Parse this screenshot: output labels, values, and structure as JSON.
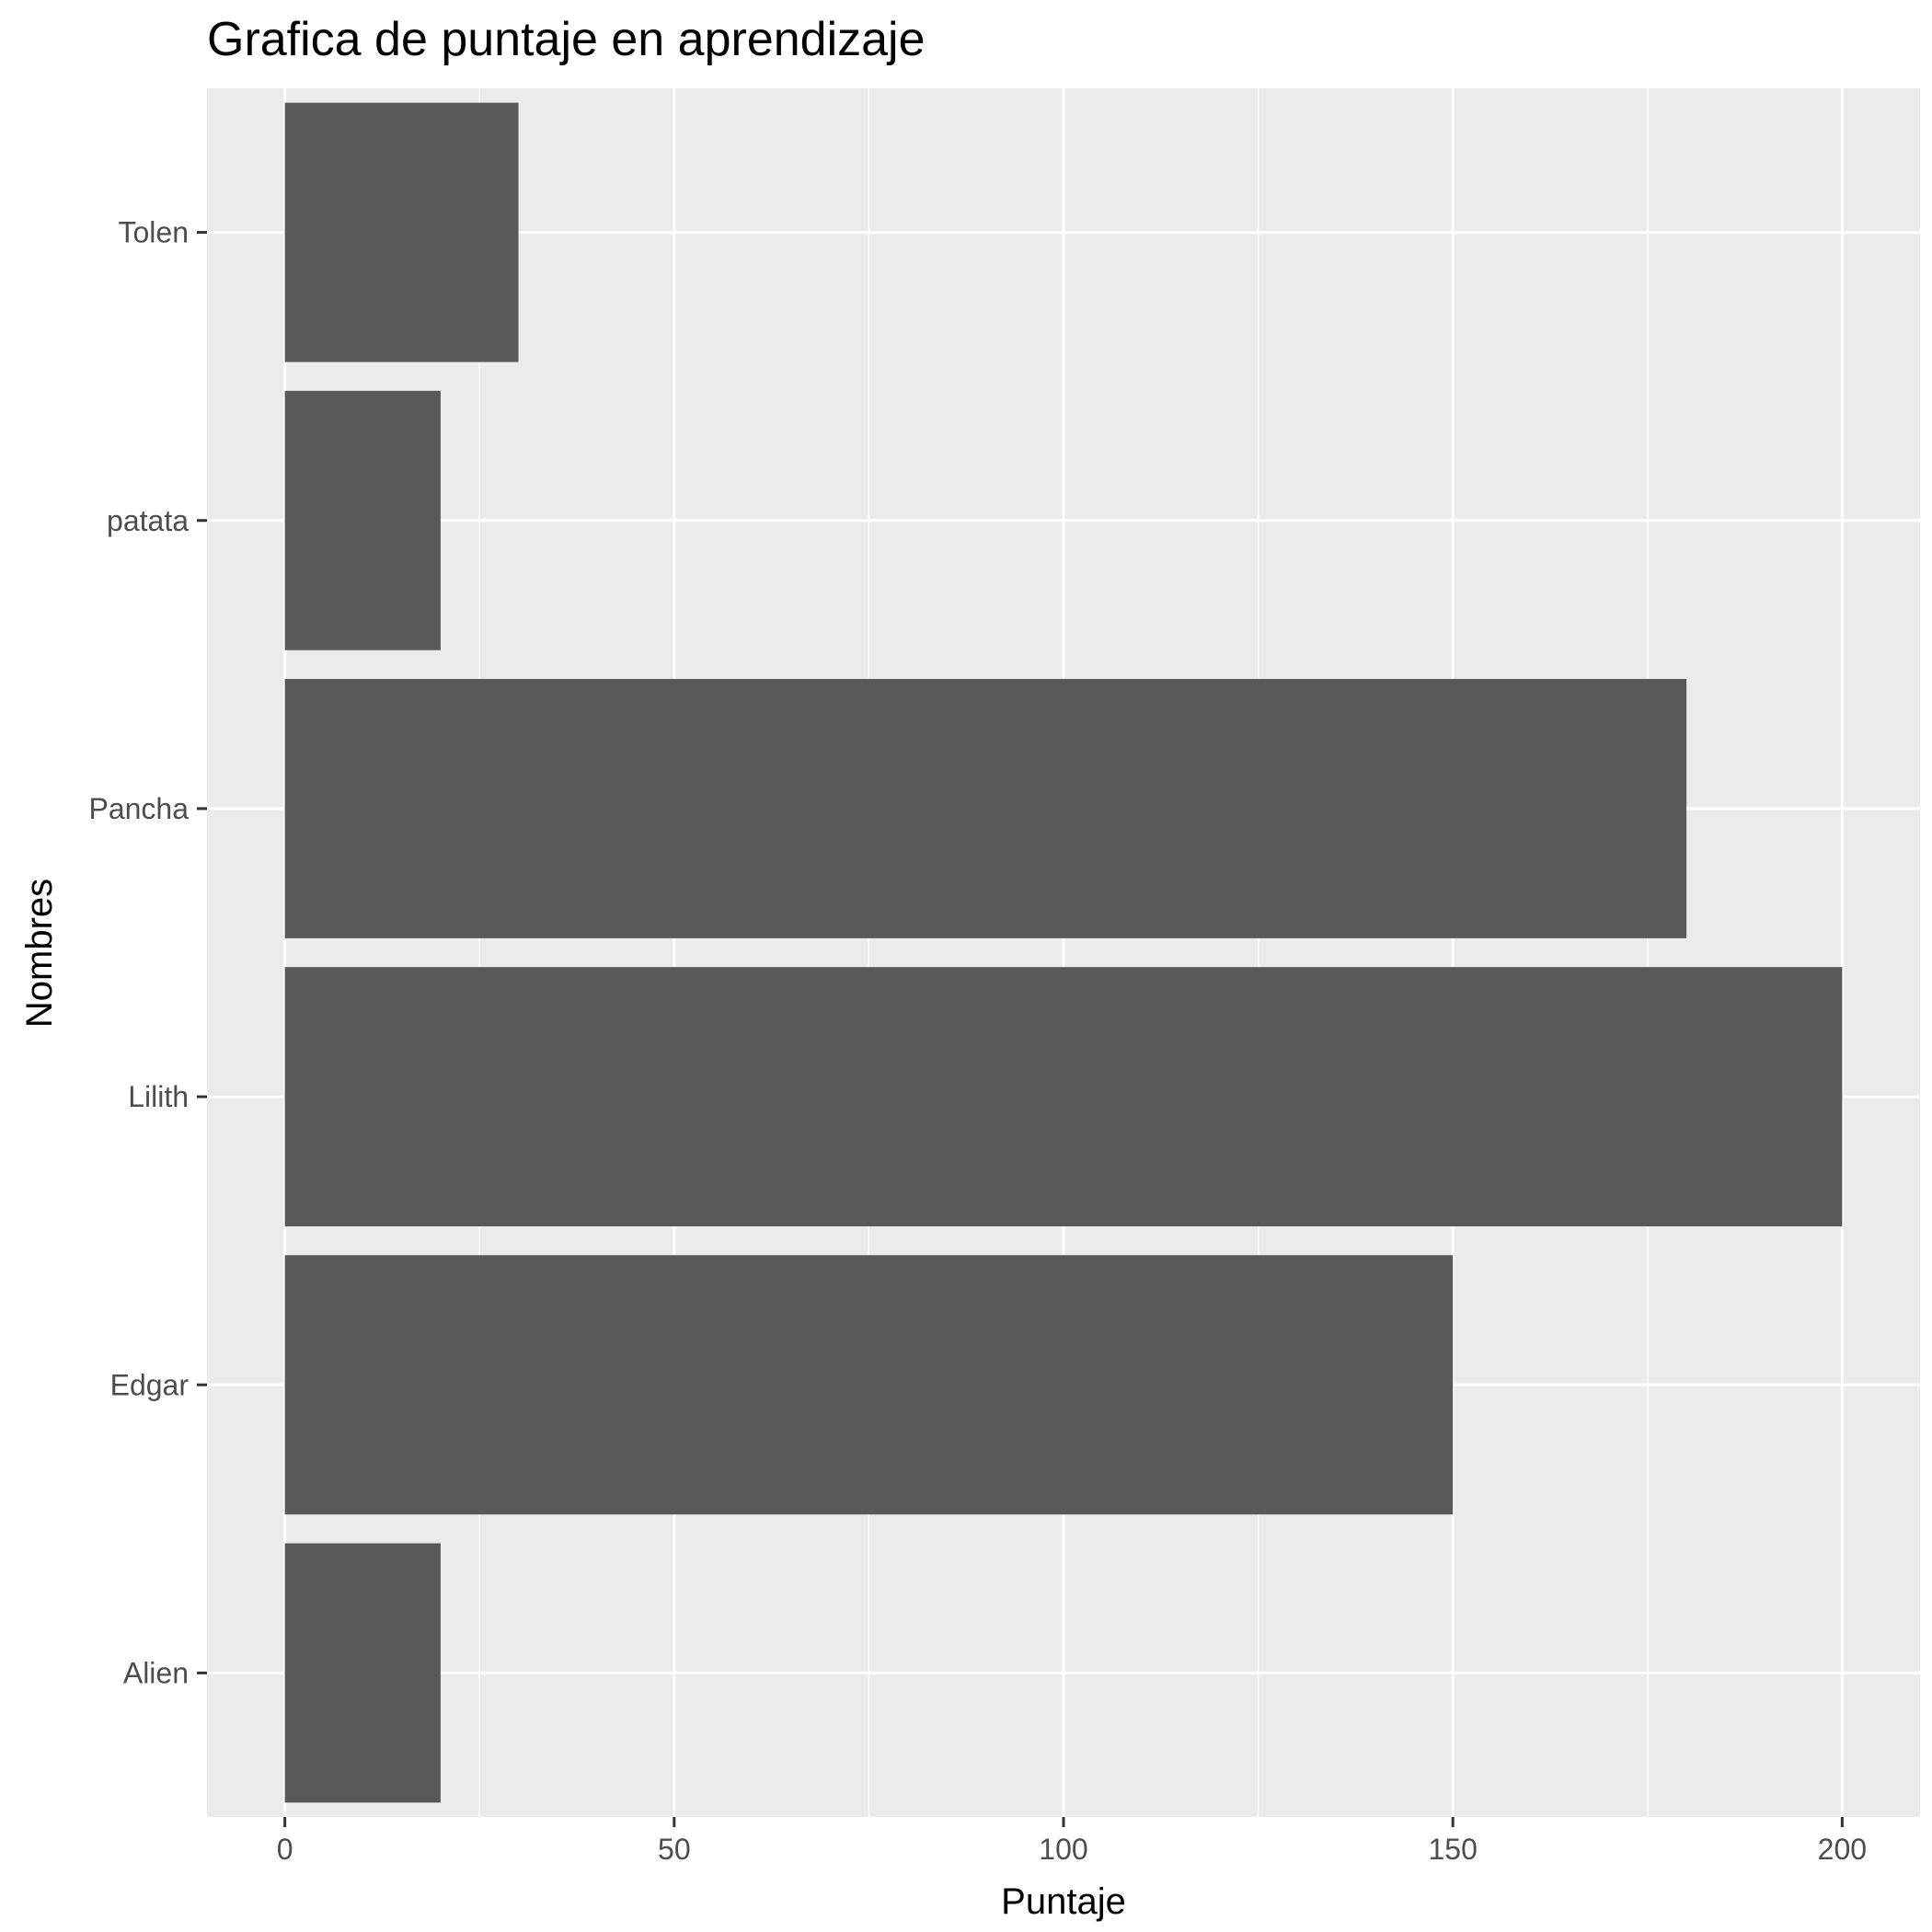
{
  "chart_data": {
    "type": "bar",
    "orientation": "horizontal",
    "title": "Grafica de puntaje en aprendizaje",
    "xlabel": "Puntaje",
    "ylabel": "Nombres",
    "categories": [
      "Alien",
      "Edgar",
      "Lilith",
      "Pancha",
      "patata",
      "Tolen"
    ],
    "values": [
      20,
      150,
      200,
      180,
      20,
      30
    ],
    "xlim": [
      -10,
      210
    ],
    "x_ticks": [
      0,
      50,
      100,
      150,
      200
    ],
    "x_tick_labels": [
      "0",
      "50",
      "100",
      "150",
      "200"
    ],
    "grid": true,
    "legend": "none"
  },
  "colors": {
    "panel": "#ebebeb",
    "grid": "#ffffff",
    "bar": "#595959",
    "tick": "#333333"
  }
}
